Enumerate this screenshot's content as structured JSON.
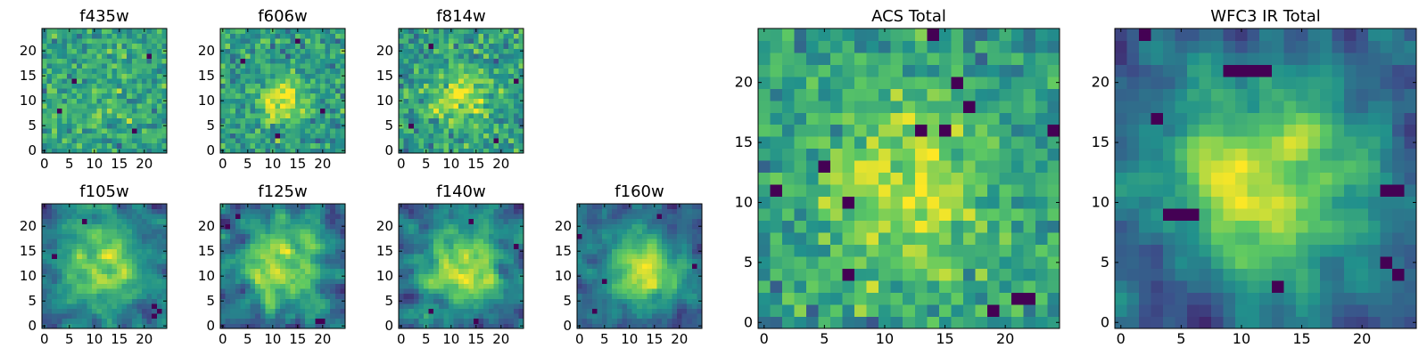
{
  "figure": {
    "colormap": [
      "#440154",
      "#3b528b",
      "#21918c",
      "#5ec962",
      "#fde725"
    ]
  },
  "chart_data": [
    {
      "id": "f435w",
      "type": "heatmap",
      "title": "f435w",
      "grid_size": 25,
      "xlim": [
        -0.5,
        24.5
      ],
      "ylim": [
        -0.5,
        24.5
      ],
      "xticks": [
        0,
        5,
        10,
        15,
        20
      ],
      "yticks": [
        0,
        5,
        10,
        15,
        20
      ],
      "value_range": [
        0,
        1
      ],
      "center": [
        12,
        12
      ],
      "blob_width": 8,
      "blob_strength": 0.08,
      "noise_level": 0.42,
      "smoothing": 0,
      "seed": 11,
      "dark_pixels": [
        [
          18,
          4
        ],
        [
          6,
          14
        ],
        [
          21,
          19
        ],
        [
          3,
          8
        ]
      ]
    },
    {
      "id": "f606w",
      "type": "heatmap",
      "title": "f606w",
      "grid_size": 25,
      "xlim": [
        -0.5,
        24.5
      ],
      "ylim": [
        -0.5,
        24.5
      ],
      "xticks": [
        0,
        5,
        10,
        15,
        20
      ],
      "yticks": [
        0,
        5,
        10,
        15,
        20
      ],
      "value_range": [
        0,
        1
      ],
      "center": [
        12,
        10
      ],
      "blob_width": 3,
      "blob_strength": 0.45,
      "noise_level": 0.42,
      "smoothing": 0,
      "seed": 23,
      "dark_pixels": [
        [
          11,
          3
        ],
        [
          20,
          8
        ],
        [
          4,
          18
        ],
        [
          15,
          22
        ]
      ]
    },
    {
      "id": "f814w",
      "type": "heatmap",
      "title": "f814w",
      "grid_size": 25,
      "xlim": [
        -0.5,
        24.5
      ],
      "ylim": [
        -0.5,
        24.5
      ],
      "xticks": [
        0,
        5,
        10,
        15,
        20
      ],
      "yticks": [
        0,
        5,
        10,
        15,
        20
      ],
      "value_range": [
        0,
        1
      ],
      "center": [
        12,
        11
      ],
      "blob_width": 4,
      "blob_strength": 0.35,
      "noise_level": 0.45,
      "smoothing": 0,
      "seed": 37,
      "dark_pixels": [
        [
          6,
          21
        ],
        [
          19,
          2
        ],
        [
          23,
          14
        ],
        [
          2,
          5
        ]
      ]
    },
    {
      "id": "f105w",
      "type": "heatmap",
      "title": "f105w",
      "grid_size": 25,
      "xlim": [
        -0.5,
        24.5
      ],
      "ylim": [
        -0.5,
        24.5
      ],
      "xticks": [
        0,
        5,
        10,
        15,
        20
      ],
      "yticks": [
        0,
        5,
        10,
        15,
        20
      ],
      "value_range": [
        0,
        1
      ],
      "center": [
        12,
        12
      ],
      "blob_width": 6,
      "blob_strength": 0.3,
      "noise_level": 0.5,
      "smoothing": 1,
      "seed": 41,
      "dark_pixels": [
        [
          22,
          4
        ],
        [
          23,
          3
        ],
        [
          22,
          2
        ],
        [
          8,
          21
        ],
        [
          2,
          14
        ]
      ]
    },
    {
      "id": "f125w",
      "type": "heatmap",
      "title": "f125w",
      "grid_size": 25,
      "xlim": [
        -0.5,
        24.5
      ],
      "ylim": [
        -0.5,
        24.5
      ],
      "xticks": [
        0,
        5,
        10,
        15,
        20
      ],
      "yticks": [
        0,
        5,
        10,
        15,
        20
      ],
      "value_range": [
        0,
        1
      ],
      "center": [
        11,
        12
      ],
      "blob_width": 6,
      "blob_strength": 0.3,
      "noise_level": 0.5,
      "smoothing": 1,
      "seed": 53,
      "dark_pixels": [
        [
          20,
          1
        ],
        [
          19,
          1
        ],
        [
          3,
          22
        ],
        [
          1,
          20
        ]
      ]
    },
    {
      "id": "f140w",
      "type": "heatmap",
      "title": "f140w",
      "grid_size": 25,
      "xlim": [
        -0.5,
        24.5
      ],
      "ylim": [
        -0.5,
        24.5
      ],
      "xticks": [
        0,
        5,
        10,
        15,
        20
      ],
      "yticks": [
        0,
        5,
        10,
        15,
        20
      ],
      "value_range": [
        0,
        1
      ],
      "center": [
        12,
        12
      ],
      "blob_width": 6,
      "blob_strength": 0.35,
      "noise_level": 0.5,
      "smoothing": 1,
      "seed": 67,
      "dark_pixels": [
        [
          14,
          21
        ],
        [
          15,
          1
        ],
        [
          6,
          3
        ],
        [
          23,
          16
        ]
      ]
    },
    {
      "id": "f160w",
      "type": "heatmap",
      "title": "f160w",
      "grid_size": 25,
      "xlim": [
        -0.5,
        24.5
      ],
      "ylim": [
        -0.5,
        24.5
      ],
      "xticks": [
        0,
        5,
        10,
        15,
        20
      ],
      "yticks": [
        0,
        5,
        10,
        15,
        20
      ],
      "value_range": [
        0,
        1
      ],
      "center": [
        13,
        11
      ],
      "blob_width": 5,
      "blob_strength": 0.4,
      "noise_level": 0.5,
      "smoothing": 1,
      "seed": 79,
      "dark_pixels": [
        [
          5,
          9
        ],
        [
          0,
          18
        ],
        [
          23,
          12
        ],
        [
          3,
          3
        ],
        [
          16,
          22
        ]
      ]
    },
    {
      "id": "acs-total",
      "type": "heatmap",
      "title": "ACS Total",
      "grid_size": 25,
      "xlim": [
        -0.5,
        24.5
      ],
      "ylim": [
        -0.5,
        24.5
      ],
      "xticks": [
        0,
        5,
        10,
        15,
        20
      ],
      "yticks": [
        0,
        5,
        10,
        15,
        20
      ],
      "value_range": [
        0,
        1
      ],
      "center": [
        12,
        11
      ],
      "blob_width": 5,
      "blob_strength": 0.35,
      "noise_level": 0.4,
      "smoothing": 0,
      "seed": 97,
      "dark_pixels": [
        [
          14,
          24
        ],
        [
          1,
          11
        ],
        [
          5,
          13
        ],
        [
          7,
          10
        ],
        [
          13,
          16
        ],
        [
          15,
          16
        ],
        [
          16,
          20
        ],
        [
          7,
          4
        ],
        [
          19,
          1
        ],
        [
          21,
          2
        ],
        [
          22,
          2
        ],
        [
          24,
          16
        ],
        [
          17,
          18
        ]
      ]
    },
    {
      "id": "wfc3-ir-total",
      "type": "heatmap",
      "title": "WFC3 IR Total",
      "grid_size": 25,
      "xlim": [
        -0.5,
        24.5
      ],
      "ylim": [
        -0.5,
        24.5
      ],
      "xticks": [
        0,
        5,
        10,
        15,
        20
      ],
      "yticks": [
        0,
        5,
        10,
        15,
        20
      ],
      "value_range": [
        0,
        1
      ],
      "center": [
        12,
        12
      ],
      "blob_width": 6,
      "blob_strength": 0.35,
      "noise_level": 0.4,
      "smoothing": 1,
      "seed": 113,
      "dark_pixels": [
        [
          9,
          21
        ],
        [
          10,
          21
        ],
        [
          11,
          21
        ],
        [
          12,
          21
        ],
        [
          4,
          9
        ],
        [
          5,
          9
        ],
        [
          6,
          9
        ],
        [
          3,
          17
        ],
        [
          13,
          3
        ],
        [
          22,
          11
        ],
        [
          23,
          11
        ],
        [
          22,
          5
        ],
        [
          23,
          4
        ],
        [
          2,
          24
        ]
      ]
    }
  ]
}
